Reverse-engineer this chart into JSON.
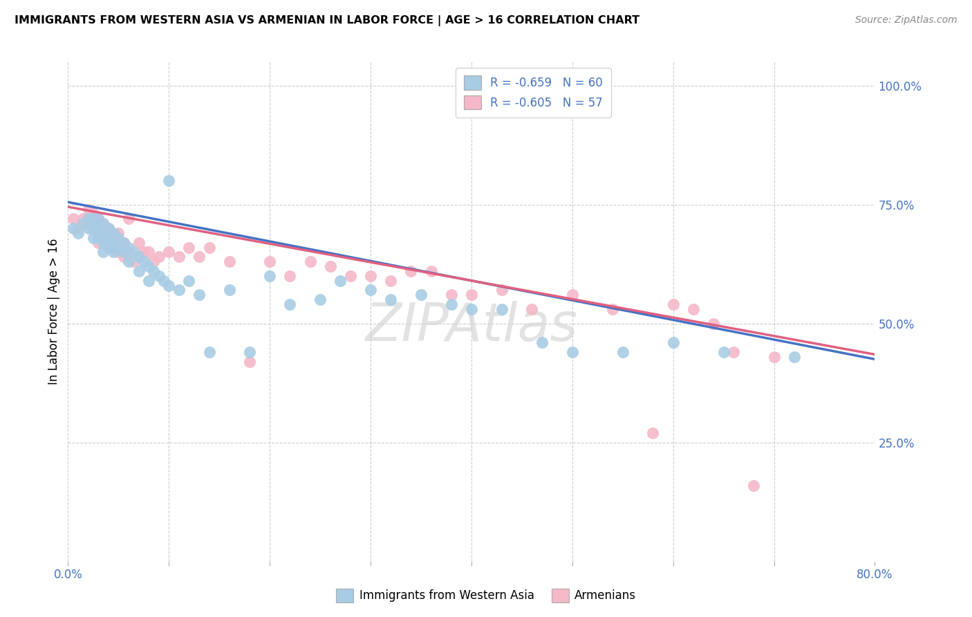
{
  "title": "IMMIGRANTS FROM WESTERN ASIA VS ARMENIAN IN LABOR FORCE | AGE > 16 CORRELATION CHART",
  "source": "Source: ZipAtlas.com",
  "ylabel": "In Labor Force | Age > 16",
  "ytick_labels": [
    "",
    "25.0%",
    "50.0%",
    "75.0%",
    "100.0%"
  ],
  "ytick_values": [
    0.0,
    0.25,
    0.5,
    0.75,
    1.0
  ],
  "xlim": [
    0.0,
    0.8
  ],
  "ylim": [
    0.0,
    1.05
  ],
  "legend_R1": "R = -0.659",
  "legend_N1": "N = 60",
  "legend_R2": "R = -0.605",
  "legend_N2": "N = 57",
  "color_blue": "#a8cce4",
  "color_pink": "#f4b8c8",
  "color_line_blue": "#4472c4",
  "color_line_pink": "#e06080",
  "color_text_blue": "#4472c4",
  "background_color": "#ffffff",
  "grid_color": "#cccccc",
  "blue_x": [
    0.005,
    0.01,
    0.015,
    0.02,
    0.02,
    0.025,
    0.025,
    0.025,
    0.03,
    0.03,
    0.03,
    0.035,
    0.035,
    0.035,
    0.035,
    0.04,
    0.04,
    0.04,
    0.045,
    0.045,
    0.045,
    0.05,
    0.05,
    0.055,
    0.055,
    0.06,
    0.06,
    0.065,
    0.07,
    0.07,
    0.075,
    0.08,
    0.08,
    0.085,
    0.09,
    0.095,
    0.1,
    0.1,
    0.11,
    0.12,
    0.13,
    0.14,
    0.16,
    0.18,
    0.2,
    0.22,
    0.25,
    0.27,
    0.3,
    0.32,
    0.35,
    0.38,
    0.4,
    0.43,
    0.47,
    0.5,
    0.55,
    0.6,
    0.65,
    0.72
  ],
  "blue_y": [
    0.7,
    0.69,
    0.71,
    0.72,
    0.7,
    0.72,
    0.7,
    0.68,
    0.72,
    0.7,
    0.68,
    0.71,
    0.69,
    0.67,
    0.65,
    0.7,
    0.68,
    0.66,
    0.69,
    0.67,
    0.65,
    0.68,
    0.66,
    0.67,
    0.65,
    0.66,
    0.63,
    0.65,
    0.64,
    0.61,
    0.63,
    0.62,
    0.59,
    0.61,
    0.6,
    0.59,
    0.8,
    0.58,
    0.57,
    0.59,
    0.56,
    0.44,
    0.57,
    0.44,
    0.6,
    0.54,
    0.55,
    0.59,
    0.57,
    0.55,
    0.56,
    0.54,
    0.53,
    0.53,
    0.46,
    0.44,
    0.44,
    0.46,
    0.44,
    0.43
  ],
  "pink_x": [
    0.005,
    0.01,
    0.015,
    0.02,
    0.02,
    0.025,
    0.025,
    0.03,
    0.03,
    0.03,
    0.035,
    0.035,
    0.04,
    0.04,
    0.045,
    0.045,
    0.05,
    0.05,
    0.055,
    0.055,
    0.06,
    0.06,
    0.065,
    0.07,
    0.075,
    0.08,
    0.085,
    0.09,
    0.1,
    0.11,
    0.12,
    0.13,
    0.14,
    0.16,
    0.18,
    0.2,
    0.22,
    0.24,
    0.26,
    0.28,
    0.3,
    0.32,
    0.34,
    0.36,
    0.38,
    0.4,
    0.43,
    0.46,
    0.5,
    0.54,
    0.58,
    0.6,
    0.62,
    0.64,
    0.66,
    0.68,
    0.7
  ],
  "pink_y": [
    0.72,
    0.7,
    0.72,
    0.74,
    0.71,
    0.73,
    0.7,
    0.72,
    0.69,
    0.67,
    0.71,
    0.68,
    0.7,
    0.67,
    0.68,
    0.66,
    0.69,
    0.65,
    0.67,
    0.64,
    0.65,
    0.72,
    0.63,
    0.67,
    0.65,
    0.65,
    0.63,
    0.64,
    0.65,
    0.64,
    0.66,
    0.64,
    0.66,
    0.63,
    0.42,
    0.63,
    0.6,
    0.63,
    0.62,
    0.6,
    0.6,
    0.59,
    0.61,
    0.61,
    0.56,
    0.56,
    0.57,
    0.53,
    0.56,
    0.53,
    0.27,
    0.54,
    0.53,
    0.5,
    0.44,
    0.16,
    0.43
  ],
  "blue_line_x": [
    0.0,
    0.8
  ],
  "blue_line_y": [
    0.755,
    0.425
  ],
  "pink_line_x": [
    0.0,
    0.8
  ],
  "pink_line_y": [
    0.745,
    0.435
  ]
}
